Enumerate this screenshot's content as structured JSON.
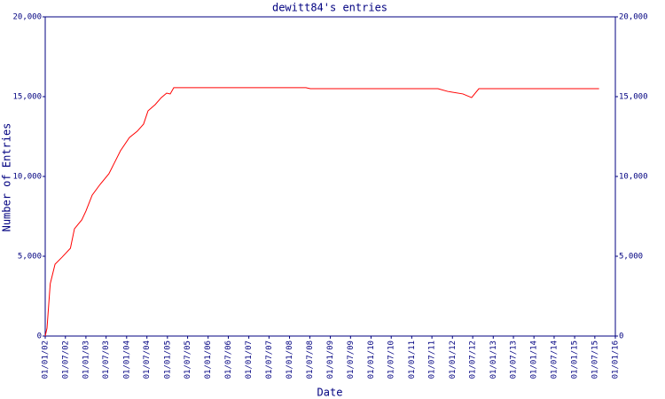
{
  "chart_data": {
    "type": "line",
    "title": "dewitt84's entries",
    "x_label": "Date",
    "y_label": "Number of Entries",
    "color": "#ff0000",
    "x": [
      "2002-01-01",
      "2002-01-17",
      "2002-02-15",
      "2002-03-30",
      "2002-06-01",
      "2002-08-15",
      "2002-09-20",
      "2002-11-25",
      "2003-01-01",
      "2003-02-26",
      "2003-05-08",
      "2003-07-26",
      "2003-09-20",
      "2003-11-07",
      "2004-01-26",
      "2004-04-05",
      "2004-06-01",
      "2004-07-11",
      "2004-09-13",
      "2004-11-07",
      "2004-12-25",
      "2005-01-26",
      "2005-02-27",
      "2008-05-27",
      "2008-07-05",
      "2011-08-24",
      "2011-11-19",
      "2012-04-04",
      "2012-06-21",
      "2012-08-25",
      "2015-08-08"
    ],
    "values": [
      0,
      500,
      3280,
      4500,
      4940,
      5500,
      6720,
      7280,
      7830,
      8830,
      9500,
      10170,
      10940,
      11610,
      12440,
      12830,
      13280,
      14110,
      14500,
      14940,
      15220,
      15170,
      15560,
      15560,
      15500,
      15500,
      15330,
      15170,
      14940,
      15500,
      15500
    ],
    "xlim": [
      "2002-01-01",
      "2016-01-01"
    ],
    "xticks": [
      {
        "value": "2002-01-01",
        "label": "01/01/02"
      },
      {
        "value": "2002-07-01",
        "label": "01/07/02"
      },
      {
        "value": "2003-01-01",
        "label": "01/01/03"
      },
      {
        "value": "2003-07-01",
        "label": "01/07/03"
      },
      {
        "value": "2004-01-01",
        "label": "01/01/04"
      },
      {
        "value": "2004-07-01",
        "label": "01/07/04"
      },
      {
        "value": "2005-01-01",
        "label": "01/01/05"
      },
      {
        "value": "2005-07-01",
        "label": "01/07/05"
      },
      {
        "value": "2006-01-01",
        "label": "01/01/06"
      },
      {
        "value": "2006-07-01",
        "label": "01/07/06"
      },
      {
        "value": "2007-01-01",
        "label": "01/01/07"
      },
      {
        "value": "2007-07-01",
        "label": "01/07/07"
      },
      {
        "value": "2008-01-01",
        "label": "01/01/08"
      },
      {
        "value": "2008-07-01",
        "label": "01/07/08"
      },
      {
        "value": "2009-01-01",
        "label": "01/01/09"
      },
      {
        "value": "2009-07-01",
        "label": "01/07/09"
      },
      {
        "value": "2010-01-01",
        "label": "01/01/10"
      },
      {
        "value": "2010-07-01",
        "label": "01/07/10"
      },
      {
        "value": "2011-01-01",
        "label": "01/01/11"
      },
      {
        "value": "2011-07-01",
        "label": "01/07/11"
      },
      {
        "value": "2012-01-01",
        "label": "01/01/12"
      },
      {
        "value": "2012-07-01",
        "label": "01/07/12"
      },
      {
        "value": "2013-01-01",
        "label": "01/01/13"
      },
      {
        "value": "2013-07-01",
        "label": "01/07/13"
      },
      {
        "value": "2014-01-01",
        "label": "01/01/14"
      },
      {
        "value": "2014-07-01",
        "label": "01/07/14"
      },
      {
        "value": "2015-01-01",
        "label": "01/01/15"
      },
      {
        "value": "2015-07-01",
        "label": "01/07/15"
      },
      {
        "value": "2016-01-01",
        "label": "01/01/16"
      }
    ],
    "ylim": [
      0,
      20000
    ],
    "yticks": [
      0,
      {
        "value": 5000,
        "label": "5,000"
      },
      {
        "value": 10000,
        "label": "10,000"
      },
      {
        "value": 15000,
        "label": "15,000"
      },
      {
        "value": 20000,
        "label": "20,000"
      }
    ]
  }
}
